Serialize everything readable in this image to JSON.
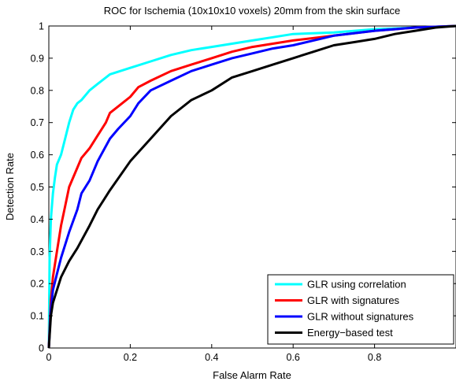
{
  "chart_data": {
    "type": "line",
    "title": "ROC for Ischemia (10x10x10 voxels) 20mm from the skin surface",
    "xlabel": "False Alarm Rate",
    "ylabel": "Detection Rate",
    "xlim": [
      0,
      1
    ],
    "ylim": [
      0,
      1
    ],
    "x_ticks": [
      "0",
      "0.2",
      "0.4",
      "0.6",
      "0.8"
    ],
    "y_ticks": [
      "0",
      "0.1",
      "0.2",
      "0.3",
      "0.4",
      "0.5",
      "0.6",
      "0.7",
      "0.8",
      "0.9",
      "1"
    ],
    "grid": false,
    "legend_position": "bottom-right",
    "series": [
      {
        "name": "GLR using correlation",
        "color": "#00ffff",
        "x": [
          0,
          0.002,
          0.005,
          0.01,
          0.015,
          0.02,
          0.03,
          0.04,
          0.05,
          0.06,
          0.07,
          0.08,
          0.1,
          0.12,
          0.15,
          0.2,
          0.25,
          0.3,
          0.35,
          0.4,
          0.45,
          0.5,
          0.55,
          0.6,
          0.7,
          0.8,
          0.9,
          1.0
        ],
        "y": [
          0,
          0.28,
          0.4,
          0.48,
          0.53,
          0.57,
          0.6,
          0.65,
          0.7,
          0.74,
          0.76,
          0.77,
          0.8,
          0.82,
          0.85,
          0.87,
          0.89,
          0.91,
          0.925,
          0.935,
          0.945,
          0.955,
          0.965,
          0.975,
          0.98,
          0.99,
          0.995,
          1.0
        ]
      },
      {
        "name": "GLR with signatures",
        "color": "#ff0000",
        "x": [
          0,
          0.005,
          0.01,
          0.02,
          0.03,
          0.04,
          0.05,
          0.07,
          0.08,
          0.1,
          0.12,
          0.14,
          0.15,
          0.17,
          0.2,
          0.22,
          0.25,
          0.3,
          0.35,
          0.4,
          0.45,
          0.5,
          0.6,
          0.7,
          0.8,
          0.9,
          1.0
        ],
        "y": [
          0,
          0.15,
          0.22,
          0.3,
          0.38,
          0.44,
          0.5,
          0.56,
          0.59,
          0.62,
          0.66,
          0.7,
          0.73,
          0.75,
          0.78,
          0.81,
          0.83,
          0.86,
          0.88,
          0.9,
          0.92,
          0.935,
          0.955,
          0.97,
          0.985,
          0.995,
          1.0
        ]
      },
      {
        "name": "GLR without signatures",
        "color": "#0000ff",
        "x": [
          0,
          0.005,
          0.01,
          0.02,
          0.03,
          0.05,
          0.07,
          0.08,
          0.1,
          0.12,
          0.15,
          0.17,
          0.2,
          0.22,
          0.25,
          0.3,
          0.35,
          0.4,
          0.45,
          0.5,
          0.55,
          0.6,
          0.65,
          0.7,
          0.8,
          0.9,
          1.0
        ],
        "y": [
          0,
          0.12,
          0.18,
          0.23,
          0.28,
          0.36,
          0.43,
          0.48,
          0.52,
          0.58,
          0.65,
          0.68,
          0.72,
          0.76,
          0.8,
          0.83,
          0.86,
          0.88,
          0.9,
          0.915,
          0.93,
          0.94,
          0.955,
          0.97,
          0.985,
          0.995,
          1.0
        ]
      },
      {
        "name": "Energy−based test",
        "color": "#000000",
        "x": [
          0,
          0.005,
          0.01,
          0.02,
          0.03,
          0.05,
          0.07,
          0.1,
          0.12,
          0.15,
          0.2,
          0.25,
          0.3,
          0.35,
          0.4,
          0.45,
          0.5,
          0.55,
          0.6,
          0.65,
          0.7,
          0.75,
          0.8,
          0.85,
          0.9,
          0.95,
          1.0
        ],
        "y": [
          0,
          0.1,
          0.14,
          0.18,
          0.22,
          0.27,
          0.31,
          0.38,
          0.43,
          0.49,
          0.58,
          0.65,
          0.72,
          0.77,
          0.8,
          0.84,
          0.86,
          0.88,
          0.9,
          0.92,
          0.94,
          0.95,
          0.96,
          0.975,
          0.985,
          0.995,
          1.0
        ]
      }
    ]
  }
}
